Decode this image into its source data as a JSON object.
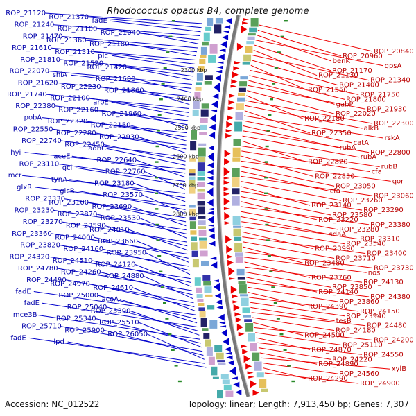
{
  "title": "Rhodococcus opacus B4, complete genome",
  "accession": "Accession: NC_012522",
  "topology": "Topology: linear; Length: 7,913,450 bp; Genes: 7,307",
  "colors": {
    "forward": "#0000cc",
    "reverse": "#ee0000",
    "backbone": "#777777",
    "tick": "#2a8a2a"
  },
  "kbp_marks": [
    "2300 kbp",
    "2400 kbp",
    "2500 kbp",
    "2600 kbp",
    "2700 kbp",
    "2800 kbp"
  ],
  "forward_labels": [
    "ROP_21120",
    "ROP_21370",
    "fadE",
    "ROP_21240",
    "ROP_21100",
    "ROP_21040",
    "ROP_21470",
    "ROP_21360",
    "ROP_21180",
    "ROP_21610",
    "ROP_21310",
    "plc",
    "ROP_21810",
    "ROP_21520",
    "ROP_21420",
    "ROP_22070",
    "shiA",
    "ROP_21680",
    "ROP_21620",
    "ROP_22230",
    "ROP_21860",
    "ROP_21740",
    "ROP_22100",
    "aroE",
    "ROP_22380",
    "ROP_22160",
    "ROP_21960",
    "pobA",
    "ROP_22320",
    "ROP_22150",
    "ROP_22550",
    "ROP_22280",
    "ROP_22930",
    "ROP_22740",
    "ROP_22450",
    "adhC",
    "hyi",
    "aceE",
    "ROP_22640",
    "ROP_23110",
    "gcl",
    "ROP_22760",
    "mcr",
    "tynA",
    "ROP_23180",
    "glxR",
    "glcB",
    "ROP_23570",
    "ROP_23330",
    "ROP_23100",
    "ROP_23690",
    "ROP_23230",
    "ROP_23870",
    "ROP_23530",
    "ROP_23270",
    "ROP_23590",
    "ROP_24010",
    "ROP_23360",
    "ROP_24000",
    "ROP_23660",
    "ROP_23820",
    "ROP_24160",
    "ROP_23950",
    "ROP_24320",
    "ROP_24510",
    "ROP_24120",
    "ROP_24780",
    "ROP_24260",
    "ROP_24880",
    "ROP_24490",
    "ROP_24970",
    "ROP_24610",
    "fadE",
    "ROP_25000",
    "acoA",
    "fadE",
    "ROP_25040",
    "ROP_25390",
    "mce3B",
    "ROP_25340",
    "ROP_25510",
    "ROP_25710",
    "ROP_25900",
    "ROP_26050",
    "fadE",
    "lpd"
  ],
  "reverse_labels": [
    "ROP_20840",
    "ROP_20960",
    "benK",
    "gpsA",
    "ROP_21170",
    "ROP_21130",
    "ROP_21340",
    "ROP_21400",
    "ROP_21550",
    "ROP_21750",
    "ROP_21800",
    "gabP",
    "ROP_21930",
    "ROP_22020",
    "ROP_22180",
    "ROP_22300",
    "alkB",
    "ROP_22350",
    "rskA",
    "catA",
    "rubA",
    "ROP_22800",
    "rubA",
    "ROP_22820",
    "rubB",
    "cfa",
    "ROP_22830",
    "qor",
    "ROP_23050",
    "cfa",
    "ROP_23060",
    "ROP_23260",
    "ROP_23140",
    "ROP_23290",
    "ROP_23580",
    "ROP_23220",
    "ROP_23380",
    "ROP_23280",
    "sdaA",
    "ROP_23310",
    "ROP_23540",
    "ROP_23990",
    "ROP_23400",
    "ROP_23710",
    "ROP_23480",
    "ROP_23730",
    "nos",
    "ROP_23760",
    "ROP_24130",
    "ROP_23850",
    "ROP_24140",
    "ROP_24380",
    "ROP_23860",
    "ROP_24390",
    "ROP_24150",
    "ROP_23940",
    "tesB",
    "ROP_24480",
    "ROP_24180",
    "ROP_24500",
    "ROP_24200",
    "ROP_25110",
    "ROP_24870",
    "ROP_24550",
    "ROP_24220",
    "ROP_24890",
    "xylB",
    "ROP_24560",
    "ROP_24290",
    "ROP_24900"
  ]
}
